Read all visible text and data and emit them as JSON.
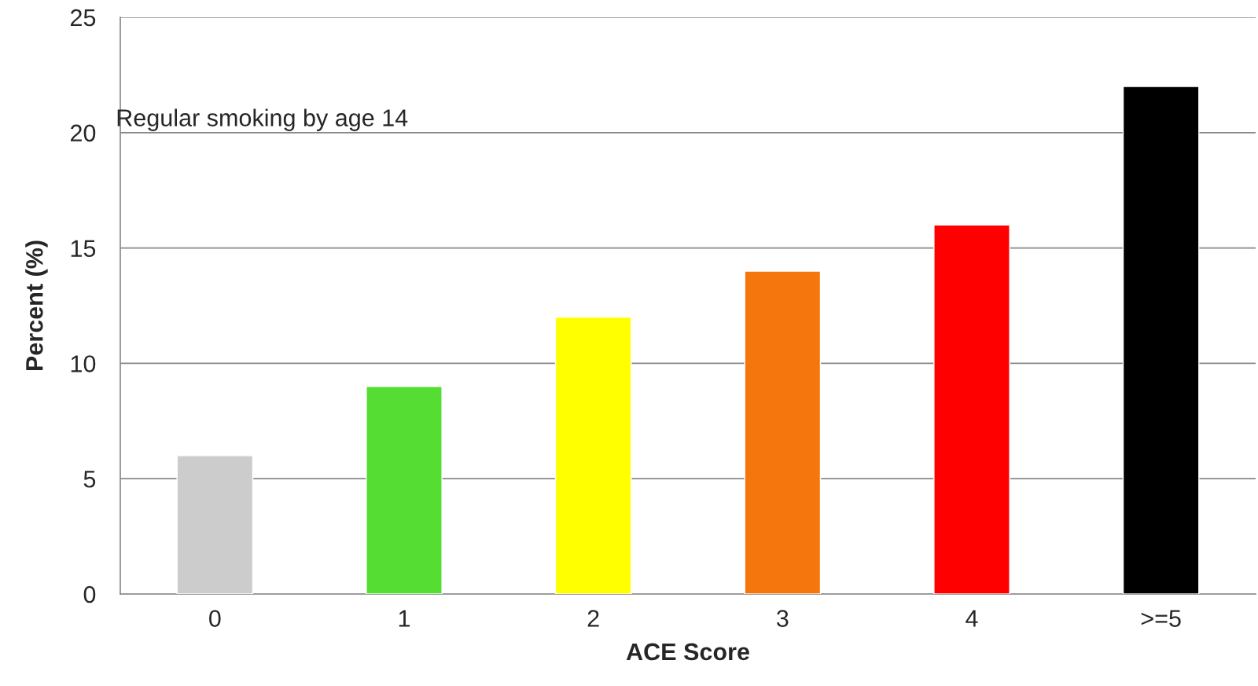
{
  "chart_data": {
    "type": "bar",
    "title": "Regular smoking by age 14",
    "xlabel": "ACE Score",
    "ylabel": "Percent (%)",
    "categories": [
      "0",
      "1",
      "2",
      "3",
      "4",
      ">=5"
    ],
    "values": [
      6,
      9,
      12,
      14,
      16,
      22
    ],
    "colors": [
      "#cccccc",
      "#55dd33",
      "#ffff00",
      "#f5760d",
      "#ff0000",
      "#000000"
    ],
    "ylim": [
      0,
      25
    ],
    "yticks": [
      0,
      5,
      10,
      15,
      20,
      25
    ],
    "grid": "y"
  }
}
